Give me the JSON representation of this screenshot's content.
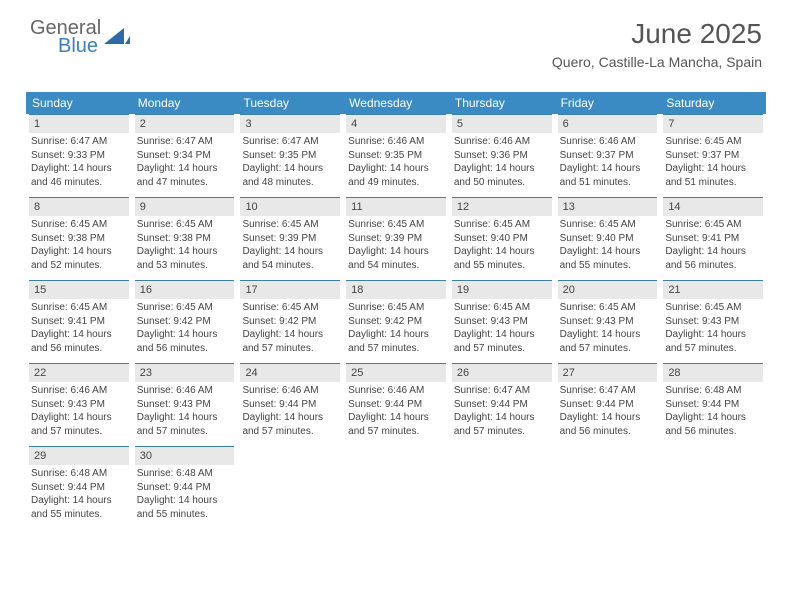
{
  "logo": {
    "text1": "General",
    "text2": "Blue",
    "color1": "#666666",
    "color2": "#3a7fc4",
    "icon_color": "#2c6aa8"
  },
  "header": {
    "title": "June 2025",
    "location": "Quero, Castille-La Mancha, Spain",
    "title_color": "#555555",
    "title_fontsize": 28,
    "location_fontsize": 14
  },
  "calendar": {
    "header_bg": "#3a8ac4",
    "header_text_color": "#ffffff",
    "daynum_bg": "#e8e8e8",
    "daynum_border": "#3a7fa4",
    "text_color": "#444444",
    "weekdays": [
      "Sunday",
      "Monday",
      "Tuesday",
      "Wednesday",
      "Thursday",
      "Friday",
      "Saturday"
    ],
    "weeks": [
      [
        {
          "num": "1",
          "sunrise": "Sunrise: 6:47 AM",
          "sunset": "Sunset: 9:33 PM",
          "daylight": "Daylight: 14 hours and 46 minutes."
        },
        {
          "num": "2",
          "sunrise": "Sunrise: 6:47 AM",
          "sunset": "Sunset: 9:34 PM",
          "daylight": "Daylight: 14 hours and 47 minutes."
        },
        {
          "num": "3",
          "sunrise": "Sunrise: 6:47 AM",
          "sunset": "Sunset: 9:35 PM",
          "daylight": "Daylight: 14 hours and 48 minutes."
        },
        {
          "num": "4",
          "sunrise": "Sunrise: 6:46 AM",
          "sunset": "Sunset: 9:35 PM",
          "daylight": "Daylight: 14 hours and 49 minutes."
        },
        {
          "num": "5",
          "sunrise": "Sunrise: 6:46 AM",
          "sunset": "Sunset: 9:36 PM",
          "daylight": "Daylight: 14 hours and 50 minutes."
        },
        {
          "num": "6",
          "sunrise": "Sunrise: 6:46 AM",
          "sunset": "Sunset: 9:37 PM",
          "daylight": "Daylight: 14 hours and 51 minutes."
        },
        {
          "num": "7",
          "sunrise": "Sunrise: 6:45 AM",
          "sunset": "Sunset: 9:37 PM",
          "daylight": "Daylight: 14 hours and 51 minutes."
        }
      ],
      [
        {
          "num": "8",
          "sunrise": "Sunrise: 6:45 AM",
          "sunset": "Sunset: 9:38 PM",
          "daylight": "Daylight: 14 hours and 52 minutes."
        },
        {
          "num": "9",
          "sunrise": "Sunrise: 6:45 AM",
          "sunset": "Sunset: 9:38 PM",
          "daylight": "Daylight: 14 hours and 53 minutes."
        },
        {
          "num": "10",
          "sunrise": "Sunrise: 6:45 AM",
          "sunset": "Sunset: 9:39 PM",
          "daylight": "Daylight: 14 hours and 54 minutes."
        },
        {
          "num": "11",
          "sunrise": "Sunrise: 6:45 AM",
          "sunset": "Sunset: 9:39 PM",
          "daylight": "Daylight: 14 hours and 54 minutes."
        },
        {
          "num": "12",
          "sunrise": "Sunrise: 6:45 AM",
          "sunset": "Sunset: 9:40 PM",
          "daylight": "Daylight: 14 hours and 55 minutes."
        },
        {
          "num": "13",
          "sunrise": "Sunrise: 6:45 AM",
          "sunset": "Sunset: 9:40 PM",
          "daylight": "Daylight: 14 hours and 55 minutes."
        },
        {
          "num": "14",
          "sunrise": "Sunrise: 6:45 AM",
          "sunset": "Sunset: 9:41 PM",
          "daylight": "Daylight: 14 hours and 56 minutes."
        }
      ],
      [
        {
          "num": "15",
          "sunrise": "Sunrise: 6:45 AM",
          "sunset": "Sunset: 9:41 PM",
          "daylight": "Daylight: 14 hours and 56 minutes."
        },
        {
          "num": "16",
          "sunrise": "Sunrise: 6:45 AM",
          "sunset": "Sunset: 9:42 PM",
          "daylight": "Daylight: 14 hours and 56 minutes."
        },
        {
          "num": "17",
          "sunrise": "Sunrise: 6:45 AM",
          "sunset": "Sunset: 9:42 PM",
          "daylight": "Daylight: 14 hours and 57 minutes."
        },
        {
          "num": "18",
          "sunrise": "Sunrise: 6:45 AM",
          "sunset": "Sunset: 9:42 PM",
          "daylight": "Daylight: 14 hours and 57 minutes."
        },
        {
          "num": "19",
          "sunrise": "Sunrise: 6:45 AM",
          "sunset": "Sunset: 9:43 PM",
          "daylight": "Daylight: 14 hours and 57 minutes."
        },
        {
          "num": "20",
          "sunrise": "Sunrise: 6:45 AM",
          "sunset": "Sunset: 9:43 PM",
          "daylight": "Daylight: 14 hours and 57 minutes."
        },
        {
          "num": "21",
          "sunrise": "Sunrise: 6:45 AM",
          "sunset": "Sunset: 9:43 PM",
          "daylight": "Daylight: 14 hours and 57 minutes."
        }
      ],
      [
        {
          "num": "22",
          "sunrise": "Sunrise: 6:46 AM",
          "sunset": "Sunset: 9:43 PM",
          "daylight": "Daylight: 14 hours and 57 minutes."
        },
        {
          "num": "23",
          "sunrise": "Sunrise: 6:46 AM",
          "sunset": "Sunset: 9:43 PM",
          "daylight": "Daylight: 14 hours and 57 minutes."
        },
        {
          "num": "24",
          "sunrise": "Sunrise: 6:46 AM",
          "sunset": "Sunset: 9:44 PM",
          "daylight": "Daylight: 14 hours and 57 minutes."
        },
        {
          "num": "25",
          "sunrise": "Sunrise: 6:46 AM",
          "sunset": "Sunset: 9:44 PM",
          "daylight": "Daylight: 14 hours and 57 minutes."
        },
        {
          "num": "26",
          "sunrise": "Sunrise: 6:47 AM",
          "sunset": "Sunset: 9:44 PM",
          "daylight": "Daylight: 14 hours and 57 minutes."
        },
        {
          "num": "27",
          "sunrise": "Sunrise: 6:47 AM",
          "sunset": "Sunset: 9:44 PM",
          "daylight": "Daylight: 14 hours and 56 minutes."
        },
        {
          "num": "28",
          "sunrise": "Sunrise: 6:48 AM",
          "sunset": "Sunset: 9:44 PM",
          "daylight": "Daylight: 14 hours and 56 minutes."
        }
      ],
      [
        {
          "num": "29",
          "sunrise": "Sunrise: 6:48 AM",
          "sunset": "Sunset: 9:44 PM",
          "daylight": "Daylight: 14 hours and 55 minutes."
        },
        {
          "num": "30",
          "sunrise": "Sunrise: 6:48 AM",
          "sunset": "Sunset: 9:44 PM",
          "daylight": "Daylight: 14 hours and 55 minutes."
        },
        {
          "empty": true
        },
        {
          "empty": true
        },
        {
          "empty": true
        },
        {
          "empty": true
        },
        {
          "empty": true
        }
      ]
    ]
  }
}
